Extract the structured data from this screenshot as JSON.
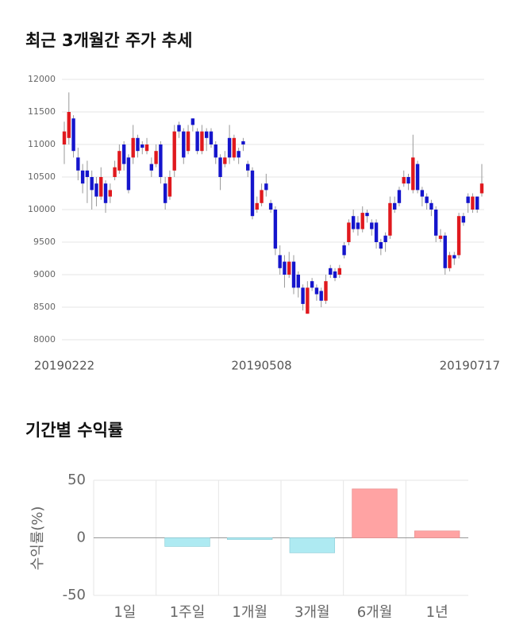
{
  "chart_data": [
    {
      "type": "candlestick",
      "title": "최근 3개월간 주가 추세",
      "categories": [
        "20190222",
        null,
        null,
        null,
        null,
        null,
        null,
        null,
        null,
        null,
        null,
        null,
        null,
        null,
        null,
        null,
        null,
        null,
        null,
        null,
        null,
        null,
        null,
        null,
        null,
        null,
        null,
        null,
        null,
        null,
        null,
        null,
        null,
        null,
        null,
        null,
        null,
        null,
        null,
        null,
        null,
        null,
        null,
        "20190508",
        null,
        null,
        null,
        null,
        null,
        null,
        null,
        null,
        null,
        null,
        null,
        null,
        null,
        null,
        null,
        null,
        null,
        null,
        null,
        null,
        null,
        null,
        null,
        null,
        null,
        null,
        null,
        null,
        null,
        null,
        null,
        null,
        null,
        null,
        null,
        null,
        null,
        null,
        null,
        null,
        null,
        null,
        null,
        null,
        null,
        null,
        null,
        "20190717"
      ],
      "open": [
        11000,
        11100,
        11400,
        10800,
        10600,
        10600,
        10500,
        10400,
        10200,
        10400,
        10200,
        10500,
        10600,
        11000,
        10800,
        10800,
        11100,
        11000,
        10900,
        10700,
        10700,
        11000,
        10400,
        10200,
        10600,
        11300,
        11200,
        10900,
        11400,
        11200,
        10900,
        11200,
        11200,
        11000,
        10800,
        10700,
        11100,
        10800,
        10900,
        11050,
        10700,
        10600,
        10000,
        10100,
        10400,
        10100,
        10000,
        9300,
        9200,
        9000,
        9200,
        9000,
        8800,
        8400,
        8900,
        8800,
        8750,
        8600,
        9100,
        9050,
        9000,
        9450,
        9500,
        9900,
        9800,
        9700,
        9950,
        9800,
        9800,
        9500,
        9600,
        9600,
        10100,
        10300,
        10400,
        10500,
        10300,
        10700,
        10300,
        10200,
        10100,
        10000,
        9550,
        9600,
        9100,
        9300,
        9300,
        9900,
        10200,
        10000,
        10200,
        10250
      ],
      "high": [
        11350,
        11800,
        11450,
        10950,
        10700,
        10750,
        10600,
        10500,
        10650,
        10450,
        10400,
        10750,
        11000,
        11050,
        10850,
        11300,
        11150,
        11050,
        11100,
        10800,
        11000,
        11050,
        10500,
        10600,
        11300,
        11350,
        11250,
        11300,
        11400,
        11250,
        11300,
        11250,
        11250,
        11050,
        10850,
        10900,
        11300,
        11150,
        10950,
        11100,
        10750,
        10650,
        10200,
        10400,
        10550,
        10150,
        10050,
        9450,
        9300,
        9350,
        9300,
        9050,
        8850,
        8900,
        8950,
        8850,
        8800,
        9000,
        9150,
        9100,
        9150,
        9500,
        9850,
        10000,
        9900,
        10050,
        10000,
        9850,
        9850,
        9550,
        9650,
        10200,
        10200,
        10350,
        10600,
        10550,
        11150,
        10750,
        10350,
        10250,
        10150,
        10050,
        9700,
        9650,
        9350,
        9350,
        9950,
        9950,
        10250,
        10250,
        10200,
        10700
      ],
      "low": [
        10700,
        11000,
        10800,
        10450,
        10250,
        10100,
        10000,
        10050,
        10150,
        9950,
        10100,
        10450,
        10550,
        10600,
        10250,
        10700,
        10800,
        10850,
        10850,
        10500,
        10650,
        10400,
        10000,
        10150,
        10500,
        11100,
        10700,
        10850,
        11200,
        10850,
        10850,
        10900,
        10950,
        10700,
        10300,
        10650,
        10700,
        10750,
        10700,
        10900,
        10500,
        9850,
        9950,
        10050,
        10200,
        9950,
        9300,
        9000,
        8800,
        8950,
        8700,
        8650,
        8450,
        8400,
        8750,
        8600,
        8500,
        8550,
        8950,
        8900,
        8950,
        9250,
        9450,
        9650,
        9600,
        9650,
        9800,
        9600,
        9400,
        9300,
        9350,
        9550,
        9950,
        10050,
        10350,
        10300,
        10250,
        10250,
        10050,
        10000,
        9900,
        9500,
        9500,
        9000,
        9050,
        9150,
        9250,
        9750,
        9950,
        9950,
        9950,
        10200
      ],
      "close": [
        11200,
        11500,
        10900,
        10600,
        10400,
        10500,
        10300,
        10200,
        10500,
        10100,
        10300,
        10650,
        10900,
        10700,
        10300,
        11100,
        10900,
        10950,
        11000,
        10600,
        10900,
        10500,
        10100,
        10500,
        11200,
        11200,
        10800,
        11200,
        11300,
        10900,
        11200,
        11100,
        11000,
        10800,
        10500,
        10800,
        10800,
        11100,
        10800,
        11000,
        10600,
        9900,
        10100,
        10300,
        10300,
        10000,
        9400,
        9100,
        9000,
        9200,
        8800,
        8800,
        8550,
        8800,
        8800,
        8700,
        8600,
        8900,
        9000,
        8950,
        9100,
        9300,
        9800,
        9700,
        9700,
        9950,
        9900,
        9700,
        9500,
        9400,
        9500,
        10100,
        10000,
        10100,
        10500,
        10400,
        10800,
        10300,
        10200,
        10100,
        10000,
        9600,
        9600,
        9100,
        9300,
        9250,
        9900,
        9800,
        10100,
        10200,
        10000,
        10400
      ],
      "up_color": "#e0191e",
      "down_color": "#1515cc",
      "ylim": [
        8000,
        12000
      ],
      "yticks": [
        8000,
        8500,
        9000,
        9500,
        10000,
        10500,
        11000,
        11500,
        12000
      ],
      "grid": true
    },
    {
      "type": "bar",
      "title": "기간별 수익률",
      "ylabel": "수익률(%)",
      "categories": [
        "1일",
        "1주일",
        "1개월",
        "3개월",
        "6개월",
        "1년"
      ],
      "values": [
        0,
        -7.5,
        -1.5,
        -13,
        42.5,
        6
      ],
      "positive_color": "#ffa3a3",
      "negative_color": "#aeeaf2",
      "ylim": [
        -50,
        50
      ],
      "yticks": [
        -50,
        0,
        50
      ],
      "grid": true
    }
  ]
}
